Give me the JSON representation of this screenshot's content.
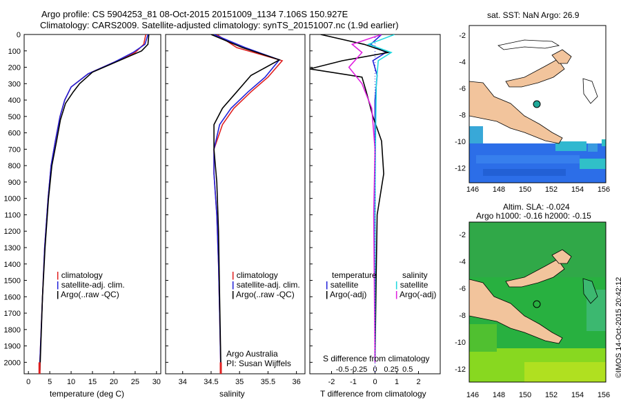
{
  "title_line1": "Argo profile: CS 5904253_81 08-Oct-2015 20151009_1134 7.106S 150.927E",
  "title_line2": "Climatology: CARS2009. Satellite-adjusted climatology: synTS_20151007.nc (1.9d earlier)",
  "colors": {
    "climatology": "#e02020",
    "satellite": "#2020d8",
    "argo": "#000000",
    "sat_s": "#20d8e0",
    "argo_s": "#e020e0",
    "land": "#f2c49c",
    "ocean_b": "#2c74e8",
    "ocean_g": "#28b040"
  },
  "panels": {
    "temperature": {
      "xlabel": "temperature (deg C)",
      "xticks": [
        "0",
        "5",
        "10",
        "15",
        "20",
        "25",
        "30"
      ],
      "legend": [
        "climatology",
        "satellite-adj. clim.",
        "Argo(..raw -QC)"
      ]
    },
    "salinity": {
      "xlabel": "salinity",
      "xticks": [
        "34",
        "34.5",
        "35",
        "35.5",
        "36"
      ],
      "legend": [
        "climatology",
        "satellite-adj. clim.",
        "Argo(..raw -QC)"
      ],
      "credit1": "Argo Australia",
      "credit2": "PI: Susan Wijffels"
    },
    "difference": {
      "xlabel": "T difference from climatology",
      "top_label": "S difference from climatology",
      "xticks_t": [
        "-2",
        "-1",
        "0",
        "1",
        "2"
      ],
      "xticks_s": [
        "-0.5",
        "-0.25",
        "0",
        "0.25",
        "0.5"
      ],
      "legend_t_head": "temperature",
      "legend_t": [
        "satellite",
        "Argo(-adj)"
      ],
      "legend_s_head": "salinity",
      "legend_s": [
        "satellite",
        "Argo(-adj)"
      ]
    },
    "map_top": {
      "title": "sat. SST: NaN Argo: 26.9"
    },
    "map_bottom": {
      "title1": "Altim. SLA: -0.024",
      "title2": "Argo h1000: -0.16 h2000: -0.15"
    },
    "map_xticks": [
      "146",
      "148",
      "150",
      "152",
      "154",
      "156"
    ],
    "map_yticks": [
      "-2",
      "-4",
      "-6",
      "-8",
      "-10",
      "-12"
    ]
  },
  "yticks": [
    "0",
    "100",
    "200",
    "300",
    "400",
    "500",
    "600",
    "700",
    "800",
    "900",
    "1000",
    "1100",
    "1200",
    "1300",
    "1400",
    "1500",
    "1600",
    "1700",
    "1800",
    "1900",
    "2000"
  ],
  "side_stamp": "©IMOS 14-Oct-2015 20:42:12",
  "chart_data": [
    {
      "type": "line",
      "xlabel": "temperature (deg C)",
      "xlim": [
        -1,
        31
      ],
      "ylim": [
        2070,
        0
      ],
      "series": [
        {
          "name": "climatology",
          "x": [
            27.5,
            27,
            25,
            20,
            14,
            10,
            8.5,
            7.4,
            6.3,
            5.3,
            4.6,
            3.8,
            3.3,
            2.6
          ],
          "y": [
            0,
            60,
            110,
            170,
            240,
            320,
            400,
            500,
            650,
            800,
            1000,
            1300,
            1600,
            2050
          ]
        },
        {
          "name": "satellite-adj. clim.",
          "x": [
            28,
            27.3,
            24.5,
            20,
            14,
            10,
            8.5,
            7.4,
            6.3,
            5.3,
            4.6,
            3.8,
            3.3,
            2.6
          ],
          "y": [
            0,
            60,
            110,
            170,
            240,
            320,
            400,
            500,
            650,
            800,
            1000,
            1300,
            1600,
            2050
          ]
        },
        {
          "name": "Argo(..raw -QC)",
          "x": [
            28.2,
            28,
            26.5,
            15,
            12,
            10.5,
            8.7,
            7.5,
            6.6,
            5.5,
            4.7,
            3.9,
            3.3,
            2.7
          ],
          "y": [
            0,
            60,
            100,
            230,
            300,
            350,
            420,
            520,
            650,
            800,
            1000,
            1300,
            1600,
            2050
          ]
        }
      ]
    },
    {
      "type": "line",
      "xlabel": "salinity",
      "xlim": [
        33.7,
        36.15
      ],
      "ylim": [
        2070,
        0
      ],
      "series": [
        {
          "name": "climatology",
          "x": [
            34.6,
            34.95,
            35.75,
            35.5,
            35.2,
            34.9,
            34.7,
            34.55,
            34.55,
            34.6,
            34.63,
            34.65,
            34.67
          ],
          "y": [
            0,
            80,
            160,
            260,
            350,
            450,
            550,
            700,
            850,
            1100,
            1400,
            1700,
            2050
          ]
        },
        {
          "name": "satellite-adj. clim.",
          "x": [
            34.55,
            35.1,
            35.7,
            35.45,
            35.15,
            34.85,
            34.65,
            34.55,
            34.55,
            34.6,
            34.63,
            34.65,
            34.67
          ],
          "y": [
            0,
            80,
            155,
            260,
            350,
            450,
            550,
            700,
            850,
            1100,
            1400,
            1700,
            2050
          ]
        },
        {
          "name": "Argo(..raw -QC)",
          "x": [
            34.5,
            35.05,
            35.7,
            35.2,
            34.95,
            34.7,
            34.55,
            34.55,
            34.6,
            34.63,
            34.65,
            34.67
          ],
          "y": [
            0,
            80,
            155,
            250,
            350,
            450,
            550,
            700,
            900,
            1200,
            1600,
            2000
          ]
        }
      ]
    },
    {
      "type": "line",
      "xlabel": "T difference from climatology",
      "xlim": [
        -3,
        3
      ],
      "ylim": [
        2070,
        0
      ],
      "series": [
        {
          "name": "satellite",
          "x": [
            0.3,
            -0.2,
            0.5,
            -0.1,
            0.1,
            0,
            0,
            0,
            0,
            0,
            0
          ],
          "y": [
            0,
            60,
            110,
            160,
            250,
            400,
            600,
            900,
            1200,
            1600,
            2000
          ]
        },
        {
          "name": "Argo(-adj)",
          "x": [
            -2.5,
            -0.5,
            0.6,
            -1.5,
            -3,
            -0.6,
            -0.4,
            -0.1,
            0.3,
            0.4,
            0.1,
            0.05,
            0
          ],
          "y": [
            0,
            60,
            110,
            160,
            210,
            260,
            350,
            500,
            650,
            850,
            1100,
            1500,
            2000
          ]
        }
      ]
    }
  ]
}
